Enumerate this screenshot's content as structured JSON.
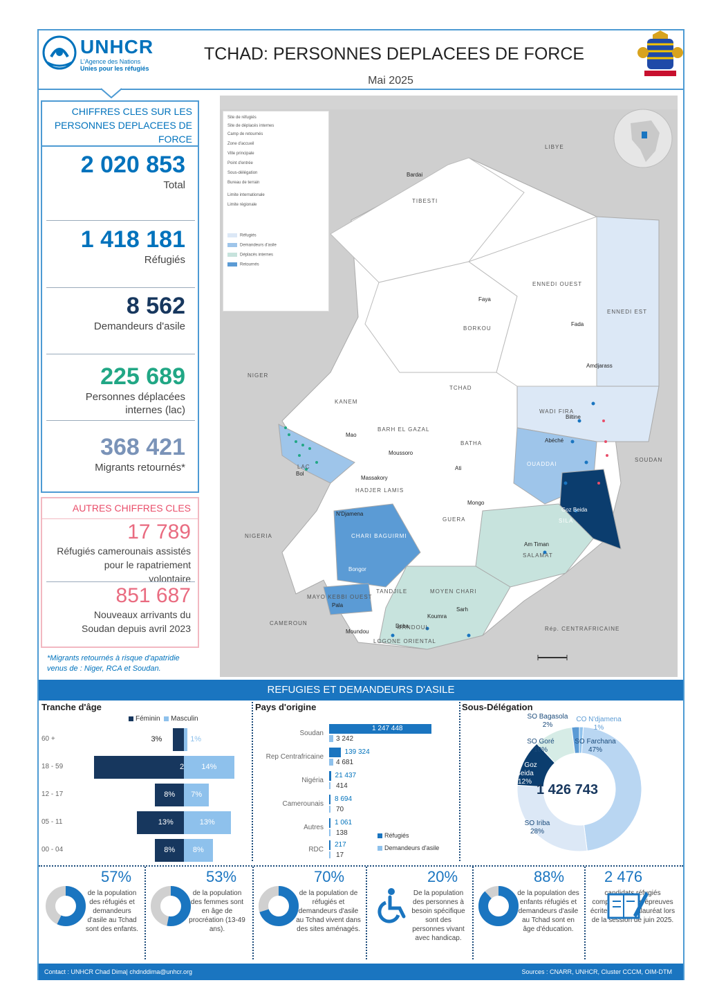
{
  "header": {
    "org_name": "UNHCR",
    "org_tagline_1": "L'Agence des Nations",
    "org_tagline_2": "Unies pour les réfugiés",
    "title": "TCHAD: PERSONNES DEPLACEES DE FORCE",
    "date": "Mai 2025"
  },
  "key_figures": {
    "heading": "CHIFFRES CLES SUR LES PERSONNES DEPLACEES DE FORCE",
    "items": [
      {
        "value": "2 020 853",
        "label": "Total"
      },
      {
        "value": "1 418 181",
        "label": "Réfugiés"
      },
      {
        "value": "8 562",
        "label": "Demandeurs d'asile"
      },
      {
        "value": "225 689",
        "label_1": "Personnes déplacées",
        "label_2": "internes (lac)"
      },
      {
        "value": "368 421",
        "label": "Migrants retournés*"
      }
    ],
    "colors": {
      "total": "#0072bc",
      "idp": "#21a785",
      "returnees": "#7a93b8"
    }
  },
  "other_figures": {
    "heading": "AUTRES CHIFFRES CLES",
    "items": [
      {
        "value": "17 789",
        "label_1": "Réfugiés camerounais assistés",
        "label_2": "pour le rapatriement",
        "label_3": "volontaire"
      },
      {
        "value": "851 687",
        "label_1": "Nouveaux arrivants du",
        "label_2": "Soudan depuis avril 2023"
      }
    ],
    "note": "*Migrants retournés à risque d'apatridie venus de : Niger, RCA et Soudan."
  },
  "map": {
    "countries": [
      "LIBYE",
      "NIGER",
      "NIGERIA",
      "CAMEROUN",
      "SOUDAN",
      "Rép. CENTRAFRICAINE"
    ],
    "regions": [
      "TIBESTI",
      "ENNEDI OUEST",
      "ENNEDI EST",
      "BORKOU",
      "TCHAD",
      "KANEM",
      "BARH EL GAZAL",
      "BATHA",
      "WADI FIRA",
      "OUADDAI",
      "SILA",
      "GUERA",
      "SALAMAT",
      "HADJER LAMIS",
      "LAC",
      "MAYO KEBBI OUEST",
      "MANDOUL",
      "MOYEN CHARI",
      "LOGONE ORIENTAL",
      "TANDJILE",
      "CHARI BAGUIRMI"
    ],
    "cities": [
      "Bardai",
      "Faya",
      "Fada",
      "Amdjarass",
      "Bol",
      "Mao",
      "Moussoro",
      "Ati",
      "Abéché",
      "Goz Beida",
      "Mongo",
      "Am Timan",
      "N'Djamena",
      "Massakory",
      "Bongor",
      "Sarh",
      "Koumra",
      "Moundou",
      "Pala",
      "Doba",
      "Biltine"
    ],
    "legend": [
      "Site de réfugiés",
      "Site de déplacés internes",
      "Camp de retournés",
      "Zone d'accueil",
      "Ville principale",
      "Point d'entrée",
      "Sous-délégation",
      "Bureau de terrain",
      "Limite internationale",
      "Limite régionale",
      "Réfugiés",
      "Demandeurs d'asile",
      "Déplacés internes",
      "Retournés"
    ],
    "legend_colors": [
      "#dce8f6",
      "#9ec5ea",
      "#5b9bd5",
      "#c7e3dd",
      "#0b3d6e"
    ]
  },
  "section_band": "REFUGIES ET DEMANDEURS D'ASILE",
  "age": {
    "heading": "Tranche d'âge",
    "legend_f": "Féminin",
    "legend_m": "Masculin",
    "rows": [
      {
        "group": "60 +",
        "f": 3,
        "m": 1,
        "f_label": "3%",
        "m_label": "1%"
      },
      {
        "group": "18 - 59",
        "f": 25,
        "m": 14,
        "f_label": "25%",
        "m_label": "14%"
      },
      {
        "group": "12 - 17",
        "f": 8,
        "m": 7,
        "f_label": "8%",
        "m_label": "7%"
      },
      {
        "group": "05 - 11",
        "f": 13,
        "m": 13,
        "f_label": "13%",
        "m_label": "13%"
      },
      {
        "group": "00 - 04",
        "f": 8,
        "m": 8,
        "f_label": "8%",
        "m_label": "8%"
      }
    ],
    "colors": {
      "f": "#17375e",
      "m": "#8ec1ec"
    }
  },
  "origin": {
    "heading": "Pays d'origine",
    "legend_ref": "Réfugiés",
    "legend_asy": "Demandeurs d'asile",
    "rows": [
      {
        "country": "Soudan",
        "refugees": 1247448,
        "refugees_label": "1 247 448",
        "asylum": 3242,
        "asylum_label": "3 242"
      },
      {
        "country": "Rep Centrafricaine",
        "refugees": 139324,
        "refugees_label": "139 324",
        "asylum": 4681,
        "asylum_label": "4 681"
      },
      {
        "country": "Nigéria",
        "refugees": 21437,
        "refugees_label": "21 437",
        "asylum": 414,
        "asylum_label": "414"
      },
      {
        "country": "Camerounais",
        "refugees": 8694,
        "refugees_label": "8 694",
        "asylum": 70,
        "asylum_label": "70"
      },
      {
        "country": "Autres",
        "refugees": 1061,
        "refugees_label": "1 061",
        "asylum": 138,
        "asylum_label": "138"
      },
      {
        "country": "RDC",
        "refugees": 217,
        "refugees_label": "217",
        "asylum": 17,
        "asylum_label": "17"
      }
    ],
    "colors": {
      "ref": "#1a75c0",
      "asy": "#8ec1ec"
    }
  },
  "subdelegation": {
    "heading": "Sous-Délégation",
    "total": "1 426 743",
    "slices": [
      {
        "name": "SO Farchana",
        "pct": 47,
        "label": "47%",
        "color": "#b9d6f2"
      },
      {
        "name": "SO Iriba",
        "pct": 28,
        "label": "28%",
        "color": "#dce8f6"
      },
      {
        "name": "SO Goz Beida",
        "pct": 12,
        "label": "12%",
        "color": "#0b3d6e"
      },
      {
        "name": "SO Goré",
        "pct": 10,
        "label": "10%",
        "color": "#d6ece6"
      },
      {
        "name": "SO Bagasola",
        "pct": 2,
        "label": "2%",
        "color": "#5b9bd5"
      },
      {
        "name": "CO N'djamena",
        "pct": 1,
        "label": "1%",
        "color": "#8ec1ec"
      }
    ]
  },
  "indicators": [
    {
      "pct": "57%",
      "value": 57,
      "desc": "de la population des réfugiés et demandeurs d'asile au Tchad sont des enfants."
    },
    {
      "pct": "53%",
      "value": 53,
      "desc": "de la population des femmes sont en âge de procréation (13-49 ans)."
    },
    {
      "pct": "70%",
      "value": 70,
      "desc": "de la population de réfugiés et demandeurs d'asile au Tchad vivent dans des sites aménagés."
    },
    {
      "pct": "20%",
      "value": 20,
      "desc": "De la population des personnes à besoin spécifique sont des personnes vivant avec handicap."
    },
    {
      "pct": "88%",
      "value": 88,
      "desc": "de la population des enfants réfugiés et demandeurs d'asile au Tchad sont en âge d'éducation."
    },
    {
      "pct": "2 476",
      "desc": "candidats réfugiés composeront les épreuves écrites du baccalauréat lors de la session de juin 2025."
    }
  ],
  "footer": {
    "contact": "Contact : UNHCR Chad Dima| chdnddima@unhcr.org",
    "sources": "Sources : CNARR, UNHCR, Cluster CCCM, OIM-DTM"
  }
}
